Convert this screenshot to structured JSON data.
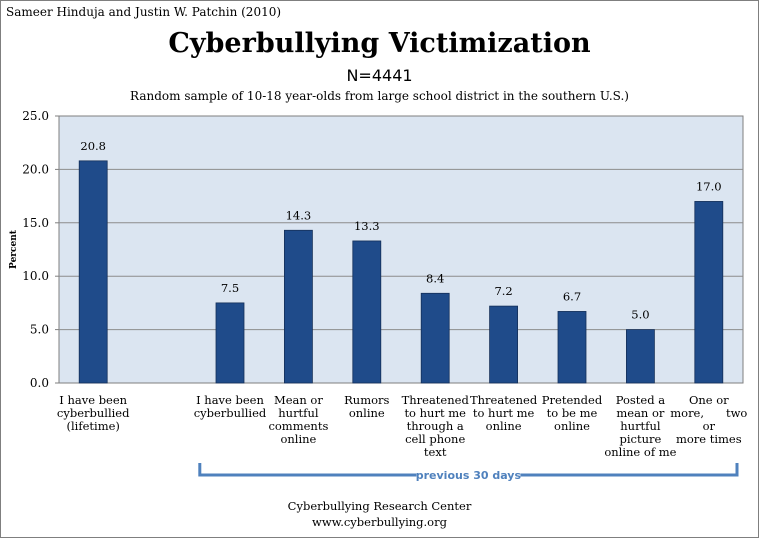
{
  "credit": "Sameer Hinduja and Justin W. Patchin (2010)",
  "title": "Cyberbullying Victimization",
  "n_label": "N=4441",
  "subtitle": "Random sample of 10-18 year-olds from large school district in the southern U.S.)",
  "footer": {
    "line1": "Cyberbullying Research Center",
    "line2": "www.cyberbullying.org"
  },
  "colors": {
    "bar": "#1f4b8a",
    "plot_bg": "#dbe5f1",
    "bracket": "#4f81bd",
    "bracket_text": "#4f81bd"
  },
  "chart_data": {
    "type": "bar",
    "ylabel": "Percent",
    "ylim": [
      0,
      25
    ],
    "yticks": [
      "0.0",
      "5.0",
      "10.0",
      "15.0",
      "20.0",
      "25.0"
    ],
    "grid": true,
    "categories": [
      [
        "I have been",
        "cyberbullied",
        "(lifetime)"
      ],
      [],
      [
        "I have been",
        "cyberbullied"
      ],
      [
        "Mean or",
        "hurtful",
        "comments",
        "online"
      ],
      [
        "Rumors",
        "online"
      ],
      [
        "Threatened",
        "to hurt me",
        "through a",
        "cell phone",
        "text"
      ],
      [
        "Threatened",
        "to hurt me",
        "online"
      ],
      [
        "Pretended",
        "to be me",
        "online"
      ],
      [
        "Posted a",
        "mean or",
        "hurtful",
        "picture",
        "online of me"
      ],
      [
        "One or",
        "more,      two",
        "or",
        "more times"
      ]
    ],
    "values": [
      20.8,
      null,
      7.5,
      14.3,
      13.3,
      8.4,
      7.2,
      6.7,
      5.0,
      17.0
    ],
    "value_labels": [
      "20.8",
      "",
      "7.5",
      "14.3",
      "13.3",
      "8.4",
      "7.2",
      "6.7",
      "5.0",
      "17.0"
    ],
    "bracket_label": "previous 30 days"
  }
}
